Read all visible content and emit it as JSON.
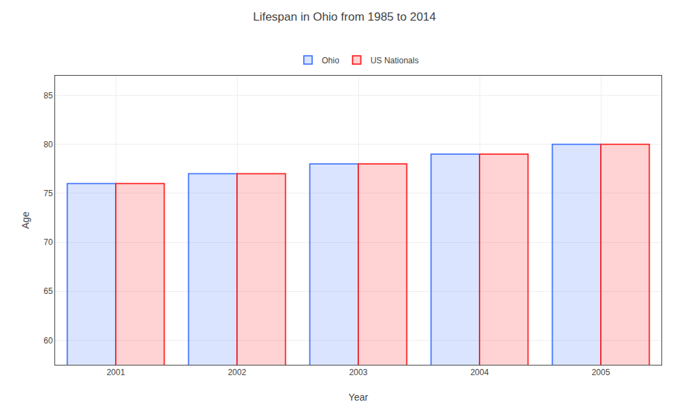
{
  "chart_data": {
    "type": "bar",
    "title": "Lifespan in Ohio from 1985 to 2014",
    "xlabel": "Year",
    "ylabel": "Age",
    "categories": [
      "2001",
      "2002",
      "2003",
      "2004",
      "2005"
    ],
    "series": [
      {
        "name": "Ohio",
        "color": "#4477FF",
        "values": [
          76,
          77,
          78,
          79,
          80
        ]
      },
      {
        "name": "US Nationals",
        "color": "#FF2222",
        "values": [
          76,
          77,
          78,
          79,
          80
        ]
      }
    ],
    "ylim": [
      57.5,
      87
    ],
    "yticks": [
      60,
      65,
      70,
      75,
      80,
      85
    ],
    "grid": true,
    "legend": "top"
  }
}
